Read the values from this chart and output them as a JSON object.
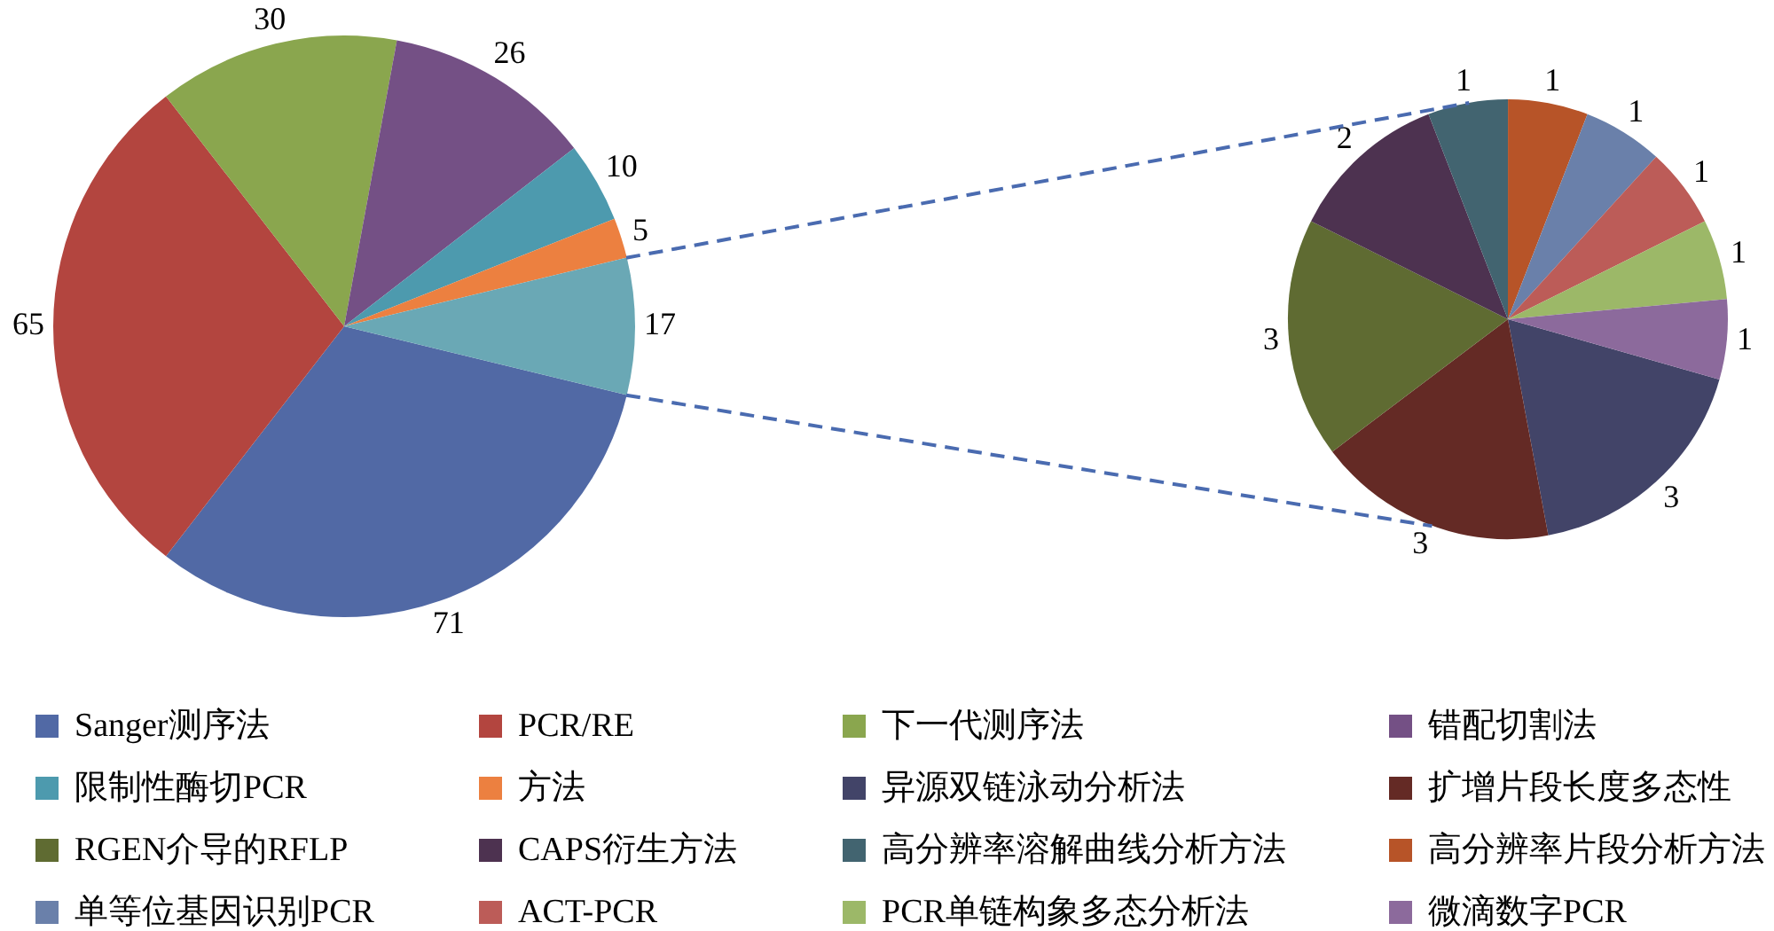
{
  "chart_data": [
    {
      "type": "pie",
      "categories": [
        "Sanger测序法",
        "PCR/RE",
        "下一代测序法",
        "错配切割法",
        "限制性酶切PCR",
        "方法",
        null
      ],
      "values": [
        71,
        65,
        30,
        26,
        10,
        5,
        17
      ],
      "colors": [
        "#5169a5",
        "#b3453f",
        "#8aa64e",
        "#745085",
        "#4d9aae",
        "#ec8040",
        "#6aa8b5"
      ],
      "data_labels": true,
      "legend": "bottom"
    },
    {
      "type": "pie",
      "categories": [
        "异源双链泳动分析法",
        "扩增片段长度多态性",
        "RGEN介导的RFLP",
        "CAPS衍生方法",
        "高分辨率溶解曲线分析方法",
        "高分辨率片段分析方法",
        "单等位基因识别PCR",
        "ACT-PCR",
        "PCR单链构象多态分析法",
        "微滴数字PCR"
      ],
      "values": [
        3,
        3,
        3,
        2,
        1,
        1,
        1,
        1,
        1,
        1
      ],
      "colors": [
        "#424468",
        "#642a25",
        "#5f6b32",
        "#4d3250",
        "#426470",
        "#b75428",
        "#6a80aa",
        "#bc5c58",
        "#9cb868",
        "#8c6a9c"
      ],
      "data_labels": true,
      "legend": "bottom"
    }
  ]
}
